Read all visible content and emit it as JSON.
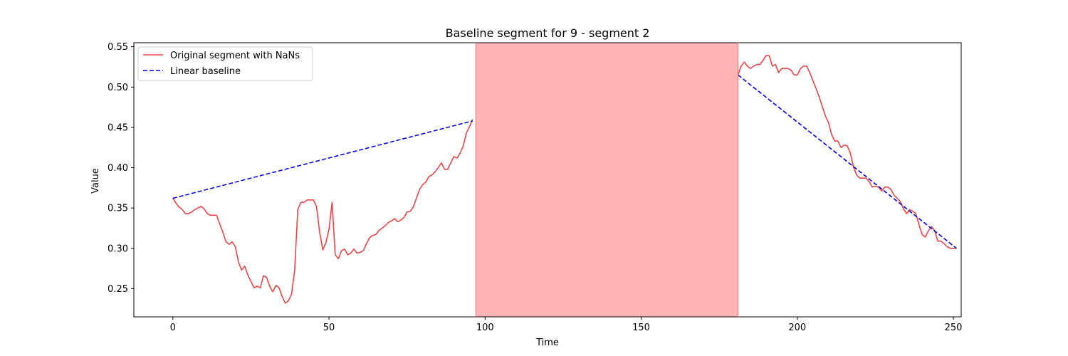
{
  "chart_data": {
    "type": "line",
    "title": "Baseline segment for 9 - segment 2",
    "xlabel": "Time",
    "ylabel": "Value",
    "xlim": [
      -12.5,
      252.5
    ],
    "ylim": [
      0.215,
      0.555
    ],
    "x_ticks": [
      0,
      50,
      100,
      150,
      200,
      250
    ],
    "y_ticks": [
      0.25,
      0.3,
      0.35,
      0.4,
      0.45,
      0.5,
      0.55
    ],
    "y_tick_labels": [
      "0.25",
      "0.30",
      "0.35",
      "0.40",
      "0.45",
      "0.50",
      "0.55"
    ],
    "grid": false,
    "legend_position": "upper left",
    "shaded_region": {
      "x_start": 97,
      "x_end": 181,
      "color": "#ff6b6b"
    },
    "series": [
      {
        "name": "Original segment with NaNs",
        "color": "#e8474a",
        "style": "solid",
        "segments": [
          {
            "x": [
              0,
              1,
              2,
              3,
              4,
              5,
              6,
              7,
              8,
              9,
              10,
              11,
              12,
              13,
              14,
              15,
              16,
              17,
              18,
              19,
              20,
              21,
              22,
              23,
              24,
              25,
              26,
              27,
              28,
              29,
              30,
              31,
              32,
              33,
              34,
              35,
              36,
              37,
              38,
              39,
              40,
              41,
              42,
              43,
              44,
              45,
              46,
              47,
              48,
              49,
              50,
              51,
              52,
              53,
              54,
              55,
              56,
              57,
              58,
              59,
              60,
              61,
              62,
              63,
              64,
              65,
              66,
              67,
              68,
              69,
              70,
              71,
              72,
              73,
              74,
              75,
              76,
              77,
              78,
              79,
              80,
              81,
              82,
              83,
              84,
              85,
              86,
              87,
              88,
              89,
              90,
              91,
              92,
              93,
              94,
              95,
              96
            ],
            "y": [
              0.362,
              0.356,
              0.351,
              0.348,
              0.343,
              0.343,
              0.345,
              0.348,
              0.35,
              0.352,
              0.349,
              0.343,
              0.341,
              0.341,
              0.341,
              0.33,
              0.32,
              0.308,
              0.305,
              0.308,
              0.302,
              0.283,
              0.273,
              0.278,
              0.267,
              0.259,
              0.251,
              0.253,
              0.251,
              0.266,
              0.264,
              0.253,
              0.246,
              0.254,
              0.251,
              0.24,
              0.232,
              0.235,
              0.243,
              0.272,
              0.348,
              0.357,
              0.357,
              0.36,
              0.36,
              0.36,
              0.352,
              0.32,
              0.298,
              0.307,
              0.324,
              0.357,
              0.292,
              0.287,
              0.297,
              0.299,
              0.292,
              0.294,
              0.299,
              0.294,
              0.295,
              0.297,
              0.306,
              0.313,
              0.316,
              0.317,
              0.322,
              0.325,
              0.328,
              0.332,
              0.334,
              0.337,
              0.333,
              0.335,
              0.338,
              0.345,
              0.346,
              0.351,
              0.362,
              0.373,
              0.379,
              0.382,
              0.389,
              0.391,
              0.395,
              0.4,
              0.406,
              0.398,
              0.398,
              0.406,
              0.414,
              0.412,
              0.418,
              0.427,
              0.443,
              0.451,
              0.46
            ]
          },
          {
            "x": [
              181,
              182,
              183,
              184,
              185,
              186,
              187,
              188,
              189,
              190,
              191,
              192,
              193,
              194,
              195,
              196,
              197,
              198,
              199,
              200,
              201,
              202,
              203,
              204,
              205,
              206,
              207,
              208,
              209,
              210,
              211,
              212,
              213,
              214,
              215,
              216,
              217,
              218,
              219,
              220,
              221,
              222,
              223,
              224,
              225,
              226,
              227,
              228,
              229,
              230,
              231,
              232,
              233,
              234,
              235,
              236,
              237,
              238,
              239,
              240,
              241,
              242,
              243,
              244,
              245,
              246,
              247,
              248,
              249,
              250,
              251
            ],
            "y": [
              0.515,
              0.526,
              0.531,
              0.526,
              0.523,
              0.526,
              0.528,
              0.528,
              0.533,
              0.539,
              0.539,
              0.526,
              0.528,
              0.518,
              0.523,
              0.523,
              0.523,
              0.521,
              0.515,
              0.515,
              0.523,
              0.526,
              0.526,
              0.518,
              0.508,
              0.498,
              0.488,
              0.476,
              0.464,
              0.456,
              0.441,
              0.433,
              0.433,
              0.425,
              0.428,
              0.427,
              0.418,
              0.401,
              0.391,
              0.387,
              0.387,
              0.387,
              0.383,
              0.376,
              0.377,
              0.376,
              0.371,
              0.376,
              0.376,
              0.373,
              0.366,
              0.362,
              0.358,
              0.349,
              0.343,
              0.348,
              0.346,
              0.343,
              0.329,
              0.317,
              0.314,
              0.322,
              0.327,
              0.322,
              0.309,
              0.309,
              0.306,
              0.302,
              0.3,
              0.3,
              0.3
            ]
          }
        ]
      },
      {
        "name": "Linear baseline",
        "color": "#0000ee",
        "style": "dashed",
        "segments": [
          {
            "x": [
              0,
              96
            ],
            "y": [
              0.362,
              0.458
            ]
          },
          {
            "x": [
              181,
              251
            ],
            "y": [
              0.515,
              0.3
            ]
          }
        ]
      }
    ]
  }
}
